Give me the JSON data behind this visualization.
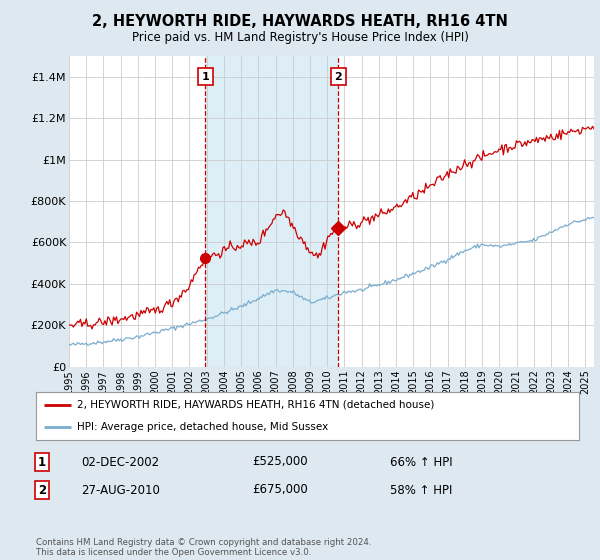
{
  "title": "2, HEYWORTH RIDE, HAYWARDS HEATH, RH16 4TN",
  "subtitle": "Price paid vs. HM Land Registry's House Price Index (HPI)",
  "ylim": [
    0,
    1500000
  ],
  "yticks": [
    0,
    200000,
    400000,
    600000,
    800000,
    1000000,
    1200000,
    1400000
  ],
  "ytick_labels": [
    "£0",
    "£200K",
    "£400K",
    "£600K",
    "£800K",
    "£1M",
    "£1.2M",
    "£1.4M"
  ],
  "sale1_date_num": 2002.92,
  "sale1_price": 525000,
  "sale1_date_str": "02-DEC-2002",
  "sale1_pct": "66%",
  "sale2_date_num": 2010.65,
  "sale2_price": 675000,
  "sale2_date_str": "27-AUG-2010",
  "sale2_pct": "58%",
  "line1_color": "#cc0000",
  "line2_color": "#7aadcf",
  "vline_color": "#cc0000",
  "shade_color": "#d0e8f5",
  "bg_color": "#dde8f0",
  "plot_bg": "#ffffff",
  "legend_line1": "2, HEYWORTH RIDE, HAYWARDS HEATH, RH16 4TN (detached house)",
  "legend_line2": "HPI: Average price, detached house, Mid Sussex",
  "footnote": "Contains HM Land Registry data © Crown copyright and database right 2024.\nThis data is licensed under the Open Government Licence v3.0.",
  "xmin": 1995,
  "xmax": 2025.5
}
